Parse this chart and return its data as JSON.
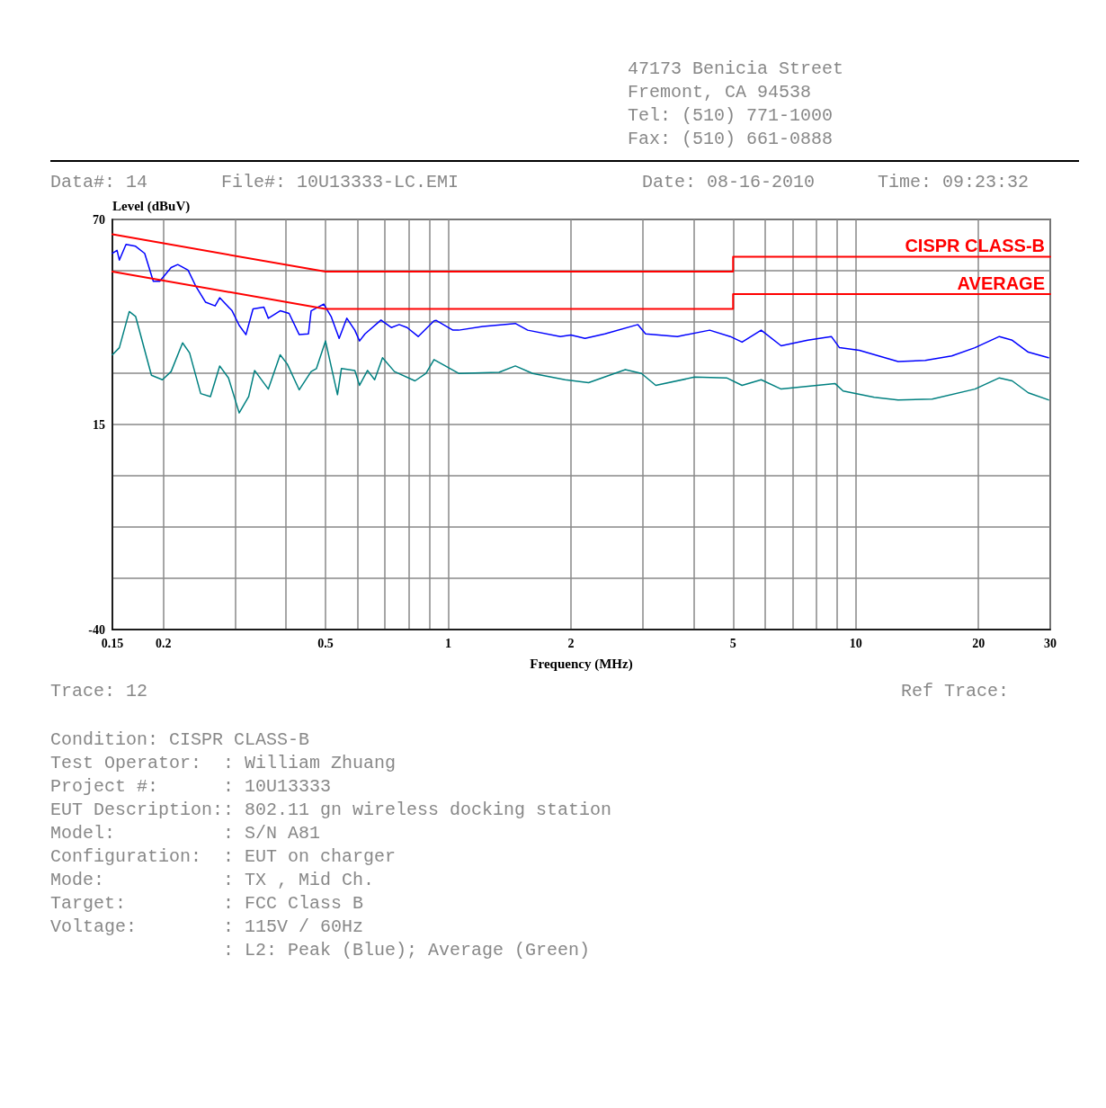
{
  "chart_data": {
    "type": "line",
    "xlabel": "Frequency (MHz)",
    "ylabel": "Level (dBuV)",
    "log": "x",
    "grid": true,
    "legend": false,
    "marker": "none",
    "line_style": "solid",
    "xlim": [
      0.15,
      30
    ],
    "ylim": [
      -40,
      70
    ],
    "xticks": [
      0.15,
      0.2,
      {
        "value": 0.3,
        "label": null
      },
      {
        "value": 0.4,
        "label": null
      },
      0.5,
      {
        "value": 0.6,
        "label": null
      },
      {
        "value": 0.7,
        "label": null
      },
      {
        "value": 0.8,
        "label": null
      },
      {
        "value": 0.9,
        "label": null
      },
      1,
      2,
      {
        "value": 3,
        "label": null
      },
      {
        "value": 4,
        "label": null
      },
      5,
      {
        "value": 6,
        "label": null
      },
      {
        "value": 7,
        "label": null
      },
      {
        "value": 8,
        "label": null
      },
      {
        "value": 9,
        "label": null
      },
      10,
      20,
      30
    ],
    "yticks": [
      -40,
      {
        "value": -26.25,
        "label": null
      },
      {
        "value": -12.5,
        "label": null
      },
      {
        "value": 1.25,
        "label": null
      },
      15,
      {
        "value": 28.75,
        "label": null
      },
      {
        "value": 42.5,
        "label": null
      },
      {
        "value": 56.25,
        "label": null
      },
      70
    ],
    "series": [
      {
        "color": "#0000ff",
        "x": [
          0.15,
          0.154,
          0.156,
          0.162,
          0.171,
          0.18,
          0.189,
          0.196,
          0.209,
          0.217,
          0.23,
          0.24,
          0.254,
          0.268,
          0.275,
          0.295,
          0.307,
          0.319,
          0.332,
          0.353,
          0.362,
          0.387,
          0.407,
          0.431,
          0.454,
          0.461,
          0.495,
          0.516,
          0.54,
          0.564,
          0.59,
          0.606,
          0.625,
          0.684,
          0.725,
          0.758,
          0.793,
          0.844,
          0.923,
          0.935,
          1.027,
          1.061,
          1.215,
          1.461,
          1.567,
          1.884,
          2,
          2.166,
          2.423,
          2.92,
          3.05,
          3.65,
          4.38,
          4.92,
          5.26,
          5.86,
          6.56,
          7.62,
          8.71,
          9.12,
          10.2,
          12.7,
          14.8,
          17.2,
          19.6,
          22.5,
          24.2,
          26.5,
          29.7
        ],
        "values": [
          60.9,
          61.7,
          59.1,
          63.3,
          62.8,
          60.9,
          53.4,
          53.4,
          57.1,
          57.9,
          56.4,
          52.2,
          47.8,
          46.8,
          49,
          45.5,
          41.6,
          39.1,
          46,
          46.5,
          43.5,
          45.5,
          44.8,
          39.1,
          39.3,
          45.5,
          47.3,
          44,
          38.1,
          43.5,
          40.3,
          37.4,
          39.3,
          43,
          41,
          41.8,
          41,
          38.6,
          42.8,
          42.9,
          40.3,
          40.3,
          41.3,
          42.1,
          40.3,
          38.6,
          39,
          38.1,
          39.3,
          41.8,
          39.3,
          38.6,
          40.3,
          38.6,
          37.1,
          40.3,
          36.1,
          37.6,
          38.6,
          35.6,
          34.9,
          31.9,
          32.2,
          33.4,
          35.6,
          38.6,
          37.6,
          34.4,
          32.9
        ]
      },
      {
        "color": "#008080",
        "x": [
          0.15,
          0.156,
          0.165,
          0.171,
          0.187,
          0.199,
          0.209,
          0.223,
          0.232,
          0.247,
          0.261,
          0.275,
          0.289,
          0.307,
          0.324,
          0.335,
          0.362,
          0.387,
          0.403,
          0.431,
          0.461,
          0.475,
          0.5,
          0.535,
          0.547,
          0.59,
          0.606,
          0.634,
          0.66,
          0.69,
          0.738,
          0.829,
          0.882,
          0.923,
          1.061,
          1.332,
          1.461,
          1.611,
          1.936,
          2.21,
          2.72,
          2.98,
          3.23,
          4.02,
          4.82,
          5.26,
          5.86,
          6.56,
          8.89,
          9.31,
          11.1,
          12.7,
          15.4,
          19.6,
          22.5,
          24.2,
          26.5,
          29.7
        ],
        "values": [
          33.7,
          35.6,
          45.3,
          44,
          28.2,
          27,
          29.2,
          36.9,
          34.2,
          23.3,
          22.5,
          30.7,
          27.5,
          18.1,
          22.5,
          29.5,
          24.5,
          33.7,
          31.2,
          24.3,
          29.2,
          30,
          37.4,
          23,
          30,
          29.5,
          25.5,
          29.5,
          27,
          32.9,
          29.2,
          26.7,
          28.7,
          32.4,
          28.7,
          29,
          30.7,
          28.7,
          27,
          26.2,
          29.7,
          28.7,
          25.5,
          27.7,
          27.5,
          25.5,
          27,
          24.5,
          26,
          24,
          22.3,
          21.6,
          21.8,
          24.5,
          27.5,
          26.7,
          23.5,
          21.6
        ]
      },
      {
        "name": "CISPR CLASS-B",
        "color": "#ff0000",
        "x": [
          0.15,
          0.5,
          5,
          5,
          30
        ],
        "values": [
          66,
          56,
          56,
          60,
          60
        ]
      },
      {
        "name": "AVERAGE",
        "color": "#ff0000",
        "x": [
          0.15,
          0.5,
          5,
          5,
          30
        ],
        "values": [
          56,
          46,
          46,
          50,
          50
        ]
      }
    ],
    "annotations": [
      "47173 Benicia Street",
      "Fremont, CA 94538",
      "Tel: (510) 771-1000",
      "Fax: (510) 661-0888",
      "Data#: 14",
      "File#: 10U13333-LC.EMI",
      "Date: 08-16-2010",
      "Time: 09:23:32",
      "Trace: 12",
      "Ref Trace:",
      "Condition: CISPR CLASS-B",
      "Test Operator:  : William Zhuang",
      "Project #:      : 10U13333",
      "EUT Description:: 802.11 gn wireless docking station",
      "Model:          : S/N A81",
      "Configuration:  : EUT on charger",
      "Mode:           : TX , Mid Ch.",
      "Target:         : FCC Class B",
      "Voltage:        : 115V / 60Hz",
      "                : L2: Peak (Blue); Average (Green)"
    ]
  }
}
